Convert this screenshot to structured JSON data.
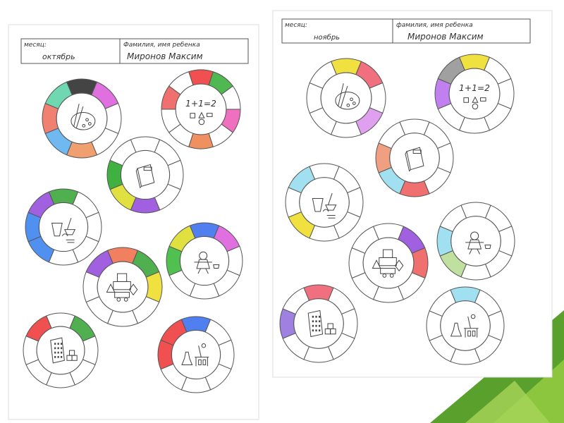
{
  "sheets": [
    {
      "header": {
        "month_label": "месяц:",
        "name_label": "Фамилия, имя ребенка",
        "month_value": "октябрь",
        "child_name": "Миронов Максим"
      },
      "wheels": [
        {
          "icon": "palette-icon",
          "segments": [
            "#444444",
            "#e070e0",
            "#ffffff",
            "#ffffff",
            "#f0a070",
            "#70b8f0",
            "#f08070",
            "#70d8b0"
          ]
        },
        {
          "icon": "math-icon",
          "segments": [
            "#f05050",
            "#50b850",
            "#ffffff",
            "#f070c0",
            "#ffffff",
            "#f09060",
            "#ffffff",
            "#ffffff",
            "#f07070",
            "#ffffff"
          ],
          "text": "1+1=2"
        },
        {
          "icon": "book-icon",
          "segments": [
            "#ffffff",
            "#ffffff",
            "#ffffff",
            "#ffffff",
            "#a060e0",
            "#e0e040",
            "#40b040",
            "#ffffff"
          ]
        },
        {
          "icon": "sandbox-icon",
          "segments": [
            "#50b050",
            "#ffffff",
            "#ffffff",
            "#ffffff",
            "#ffffff",
            "#5090f0",
            "#5090f0",
            "#a060e0"
          ]
        },
        {
          "icon": "doll-icon",
          "segments": [
            "#5080f0",
            "#e070e0",
            "#ffffff",
            "#ffffff",
            "#ffffff",
            "#ffffff",
            "#50c050",
            "#e0e040"
          ]
        },
        {
          "icon": "blocks-icon",
          "segments": [
            "#f08060",
            "#50b050",
            "#f0e040",
            "#ffffff",
            "#ffffff",
            "#ffffff",
            "#ffffff",
            "#a060e0"
          ]
        },
        {
          "icon": "abacus-icon",
          "segments": [
            "#ffffff",
            "#50b050",
            "#ffffff",
            "#ffffff",
            "#ffffff",
            "#ffffff",
            "#ffffff",
            "#f05050"
          ]
        },
        {
          "icon": "lab-icon",
          "segments": [
            "#5080f0",
            "#ffffff",
            "#ffffff",
            "#ffffff",
            "#ffffff",
            "#ffffff",
            "#f05050",
            "#f05050"
          ]
        }
      ]
    },
    {
      "header": {
        "month_label": "месяц:",
        "name_label": "фамилия, имя ребенка",
        "month_value": "ноябрь",
        "child_name": "Миронов Максим"
      },
      "wheels": [
        {
          "icon": "palette-icon",
          "segments": [
            "#f0e040",
            "#f07080",
            "#ffffff",
            "#e0a0f0",
            "#ffffff",
            "#ffffff",
            "#ffffff",
            "#ffffff"
          ]
        },
        {
          "icon": "math-icon",
          "segments": [
            "#f0e040",
            "#ffffff",
            "#ffffff",
            "#ffffff",
            "#ffffff",
            "#ffffff",
            "#c080f0",
            "#a0a0a0"
          ],
          "text": "1+1=2"
        },
        {
          "icon": "book-icon",
          "segments": [
            "#ffffff",
            "#ffffff",
            "#ffffff",
            "#ffffff",
            "#f07070",
            "#a0e0f0",
            "#f0a080",
            "#ffffff"
          ]
        },
        {
          "icon": "sandbox-icon",
          "segments": [
            "#ffffff",
            "#ffffff",
            "#ffffff",
            "#ffffff",
            "#ffffff",
            "#f0e040",
            "#ffffff",
            "#a0e0f0"
          ]
        },
        {
          "icon": "doll-icon",
          "segments": [
            "#ffffff",
            "#ffffff",
            "#ffffff",
            "#ffffff",
            "#ffffff",
            "#c0e0a0",
            "#a0e0f0",
            "#ffffff"
          ]
        },
        {
          "icon": "blocks-icon",
          "segments": [
            "#ffffff",
            "#a060e0",
            "#f07070",
            "#ffffff",
            "#ffffff",
            "#ffffff",
            "#ffffff",
            "#ffffff"
          ]
        },
        {
          "icon": "abacus-icon",
          "segments": [
            "#f07080",
            "#ffffff",
            "#ffffff",
            "#ffffff",
            "#ffffff",
            "#ffffff",
            "#a080e0",
            "#ffffff"
          ]
        },
        {
          "icon": "lab-icon",
          "segments": [
            "#a0e0f0",
            "#ffffff",
            "#ffffff",
            "#ffffff",
            "#ffffff",
            "#ffffff",
            "#ffffff",
            "#ffffff"
          ]
        }
      ]
    }
  ]
}
